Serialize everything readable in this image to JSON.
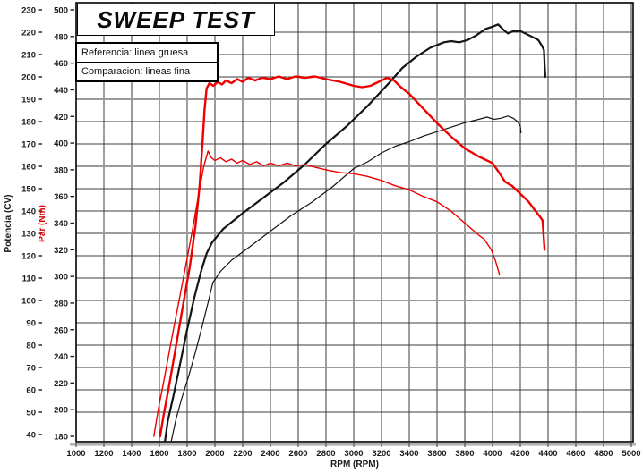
{
  "title": "SWEEP TEST",
  "legend": {
    "reference_label": "Referencia: linea gruesa",
    "comparison_label": "Comparacion: lineas fina"
  },
  "colors": {
    "power_curve": "#141414",
    "torque_curve": "#ee0000",
    "grid": "#3e3e3e",
    "grid_major": "#9b9b9b",
    "axis_border": "#000000",
    "axis_band": "#b3b3b3",
    "tick_text": "#1a1a1a",
    "torque_axis_title": "#dd0000"
  },
  "chart_data": {
    "type": "line",
    "title": "SWEEP TEST",
    "xlabel": "RPM (RPM)",
    "ylabel_left_power": "Potencia (CV)",
    "ylabel_left_torque": "Par (Nm)",
    "x_range": [
      1000,
      5000
    ],
    "x_tick_step": 200,
    "x_ticks": [
      1000,
      1200,
      1400,
      1600,
      1800,
      2000,
      2200,
      2400,
      2600,
      2800,
      3000,
      3200,
      3400,
      3600,
      3800,
      4000,
      4200,
      4400,
      4600,
      4800,
      5000
    ],
    "power_axis_range": [
      40,
      230
    ],
    "power_ticks": [
      230,
      220,
      210,
      200,
      190,
      180,
      170,
      160,
      150,
      140,
      130,
      120,
      110,
      100,
      90,
      80,
      70,
      60,
      50,
      40
    ],
    "torque_axis_range": [
      180,
      500
    ],
    "torque_ticks": [
      500,
      480,
      460,
      440,
      420,
      400,
      380,
      360,
      340,
      320,
      300,
      280,
      260,
      240,
      220,
      200,
      180
    ],
    "grid": "on",
    "gray_vertical_rpm": [
      1400,
      2000,
      2600,
      3200,
      3800,
      4400,
      5000
    ],
    "gray_horizontal_cv": [
      190,
      160,
      130,
      100,
      70
    ],
    "legend_position": "top-left",
    "series": [
      {
        "name": "Potencia Referencia (linea gruesa)",
        "axis": "power_cv",
        "style": "thick",
        "color": "#141414",
        "width": 2.2,
        "points": [
          [
            1640,
            37
          ],
          [
            1660,
            46
          ],
          [
            1700,
            57
          ],
          [
            1750,
            72
          ],
          [
            1800,
            87
          ],
          [
            1850,
            101
          ],
          [
            1900,
            113
          ],
          [
            1940,
            121
          ],
          [
            1980,
            126
          ],
          [
            2060,
            132
          ],
          [
            2200,
            139
          ],
          [
            2350,
            146
          ],
          [
            2500,
            153
          ],
          [
            2650,
            161
          ],
          [
            2800,
            170
          ],
          [
            2950,
            178
          ],
          [
            3100,
            187
          ],
          [
            3250,
            197
          ],
          [
            3350,
            204
          ],
          [
            3450,
            209
          ],
          [
            3550,
            213
          ],
          [
            3650,
            215.5
          ],
          [
            3700,
            216
          ],
          [
            3760,
            215.5
          ],
          [
            3820,
            216.5
          ],
          [
            3880,
            218.5
          ],
          [
            3950,
            221.5
          ],
          [
            4000,
            222.5
          ],
          [
            4040,
            223.5
          ],
          [
            4080,
            221
          ],
          [
            4110,
            219.5
          ],
          [
            4150,
            220.5
          ],
          [
            4200,
            220.5
          ],
          [
            4250,
            219
          ],
          [
            4300,
            217.5
          ],
          [
            4330,
            216.5
          ],
          [
            4355,
            214
          ],
          [
            4370,
            212
          ],
          [
            4375,
            206
          ],
          [
            4380,
            200
          ]
        ]
      },
      {
        "name": "Potencia Comparacion (linea fina)",
        "axis": "power_cv",
        "style": "thin",
        "color": "#141414",
        "width": 1.2,
        "points": [
          [
            1685,
            37
          ],
          [
            1720,
            47
          ],
          [
            1760,
            56
          ],
          [
            1810,
            66
          ],
          [
            1860,
            77
          ],
          [
            1910,
            89
          ],
          [
            1950,
            99
          ],
          [
            1985,
            108
          ],
          [
            2040,
            113
          ],
          [
            2120,
            118
          ],
          [
            2250,
            124
          ],
          [
            2400,
            131
          ],
          [
            2550,
            138
          ],
          [
            2700,
            144
          ],
          [
            2850,
            151
          ],
          [
            3000,
            159
          ],
          [
            3100,
            162
          ],
          [
            3200,
            166
          ],
          [
            3300,
            169
          ],
          [
            3400,
            171
          ],
          [
            3500,
            173.5
          ],
          [
            3600,
            175.5
          ],
          [
            3700,
            177.5
          ],
          [
            3800,
            179.5
          ],
          [
            3900,
            181
          ],
          [
            3960,
            182
          ],
          [
            4010,
            181
          ],
          [
            4060,
            181.5
          ],
          [
            4110,
            182.5
          ],
          [
            4150,
            181.5
          ],
          [
            4180,
            180
          ],
          [
            4200,
            178
          ],
          [
            4205,
            175
          ]
        ]
      },
      {
        "name": "Par Referencia (linea gruesa)",
        "axis": "torque_nm",
        "style": "thick",
        "color": "#ee0000",
        "width": 2.4,
        "points": [
          [
            1605,
            180
          ],
          [
            1630,
            196
          ],
          [
            1670,
            218
          ],
          [
            1720,
            248
          ],
          [
            1770,
            278
          ],
          [
            1820,
            308
          ],
          [
            1860,
            338
          ],
          [
            1890,
            368
          ],
          [
            1910,
            400
          ],
          [
            1925,
            425
          ],
          [
            1940,
            441
          ],
          [
            1960,
            445
          ],
          [
            1990,
            443
          ],
          [
            2020,
            446
          ],
          [
            2050,
            444
          ],
          [
            2080,
            447
          ],
          [
            2120,
            445
          ],
          [
            2160,
            448
          ],
          [
            2200,
            446
          ],
          [
            2240,
            449
          ],
          [
            2290,
            447
          ],
          [
            2340,
            449
          ],
          [
            2400,
            448
          ],
          [
            2460,
            450
          ],
          [
            2520,
            448
          ],
          [
            2580,
            450
          ],
          [
            2650,
            449
          ],
          [
            2720,
            450
          ],
          [
            2800,
            448
          ],
          [
            2900,
            446
          ],
          [
            3000,
            443
          ],
          [
            3060,
            442
          ],
          [
            3120,
            443
          ],
          [
            3180,
            446
          ],
          [
            3240,
            449
          ],
          [
            3290,
            447
          ],
          [
            3340,
            442
          ],
          [
            3400,
            437
          ],
          [
            3500,
            426
          ],
          [
            3600,
            415
          ],
          [
            3700,
            405
          ],
          [
            3800,
            396
          ],
          [
            3900,
            390
          ],
          [
            4000,
            385
          ],
          [
            4040,
            379
          ],
          [
            4090,
            371
          ],
          [
            4140,
            368
          ],
          [
            4200,
            362
          ],
          [
            4260,
            356
          ],
          [
            4310,
            349
          ],
          [
            4340,
            345
          ],
          [
            4360,
            342
          ],
          [
            4365,
            335
          ],
          [
            4370,
            327
          ],
          [
            4375,
            320
          ]
        ]
      },
      {
        "name": "Par Comparacion (linea fina)",
        "axis": "torque_nm",
        "style": "thin",
        "color": "#ee0000",
        "width": 1.4,
        "points": [
          [
            1560,
            180
          ],
          [
            1590,
            199
          ],
          [
            1640,
            226
          ],
          [
            1690,
            254
          ],
          [
            1740,
            281
          ],
          [
            1790,
            308
          ],
          [
            1840,
            336
          ],
          [
            1885,
            363
          ],
          [
            1920,
            383
          ],
          [
            1950,
            394
          ],
          [
            1975,
            389
          ],
          [
            2000,
            387
          ],
          [
            2040,
            389
          ],
          [
            2080,
            386
          ],
          [
            2120,
            388
          ],
          [
            2160,
            385
          ],
          [
            2200,
            387
          ],
          [
            2250,
            384
          ],
          [
            2300,
            386
          ],
          [
            2350,
            383
          ],
          [
            2400,
            385
          ],
          [
            2460,
            383
          ],
          [
            2520,
            385
          ],
          [
            2580,
            383
          ],
          [
            2650,
            384
          ],
          [
            2720,
            382
          ],
          [
            2800,
            380
          ],
          [
            2900,
            378
          ],
          [
            3000,
            377
          ],
          [
            3100,
            375
          ],
          [
            3200,
            372
          ],
          [
            3300,
            368
          ],
          [
            3400,
            365
          ],
          [
            3500,
            360
          ],
          [
            3600,
            356
          ],
          [
            3700,
            349
          ],
          [
            3800,
            340
          ],
          [
            3900,
            331
          ],
          [
            3940,
            328
          ],
          [
            3990,
            320
          ],
          [
            4020,
            312
          ],
          [
            4040,
            305
          ],
          [
            4050,
            301
          ]
        ]
      }
    ]
  }
}
